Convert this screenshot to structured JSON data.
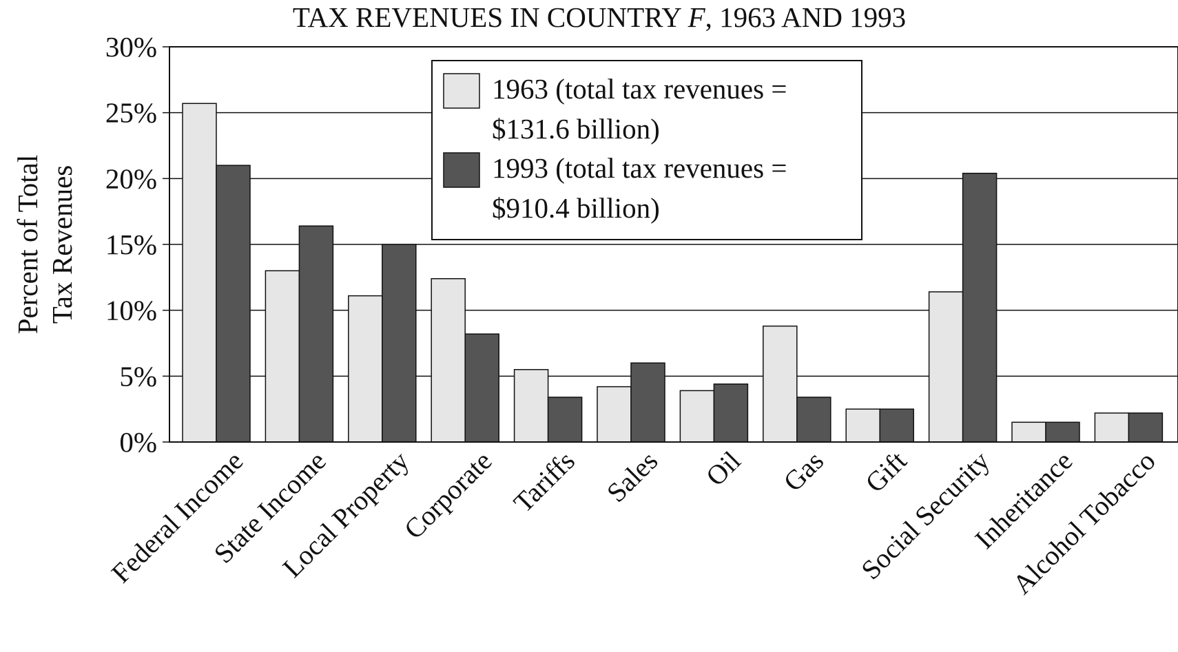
{
  "chart_data": {
    "type": "bar",
    "title_parts": [
      "TAX REVENUES IN COUNTRY ",
      "F",
      ", 1963 AND 1993"
    ],
    "ylabel_lines": [
      "Percent of Total",
      "Tax Revenues"
    ],
    "xlabel": "",
    "ylim": [
      0,
      30
    ],
    "yticks": [
      0,
      5,
      10,
      15,
      20,
      25,
      30
    ],
    "ytick_labels": [
      "0%",
      "5%",
      "10%",
      "15%",
      "20%",
      "25%",
      "30%"
    ],
    "grid": "horizontal",
    "legend_position": "top-center",
    "categories": [
      "Federal Income",
      "State Income",
      "Local Property",
      "Corporate",
      "Tariffs",
      "Sales",
      "Oil",
      "Gas",
      "Gift",
      "Social Security",
      "Inheritance",
      "Alcohol Tobacco"
    ],
    "series": [
      {
        "name": "1963",
        "legend_lines": [
          "1963 (total tax revenues =",
          "$131.6 billion)"
        ],
        "color": "#e6e6e6",
        "values": [
          25.7,
          13.0,
          11.1,
          12.4,
          5.5,
          4.2,
          3.9,
          8.8,
          2.5,
          11.4,
          1.5,
          2.2
        ]
      },
      {
        "name": "1993",
        "legend_lines": [
          "1993 (total tax revenues =",
          "$910.4 billion)"
        ],
        "color": "#555555",
        "values": [
          21.0,
          16.4,
          15.0,
          8.2,
          3.4,
          6.0,
          4.4,
          3.4,
          2.5,
          20.4,
          1.5,
          2.2
        ]
      }
    ]
  }
}
